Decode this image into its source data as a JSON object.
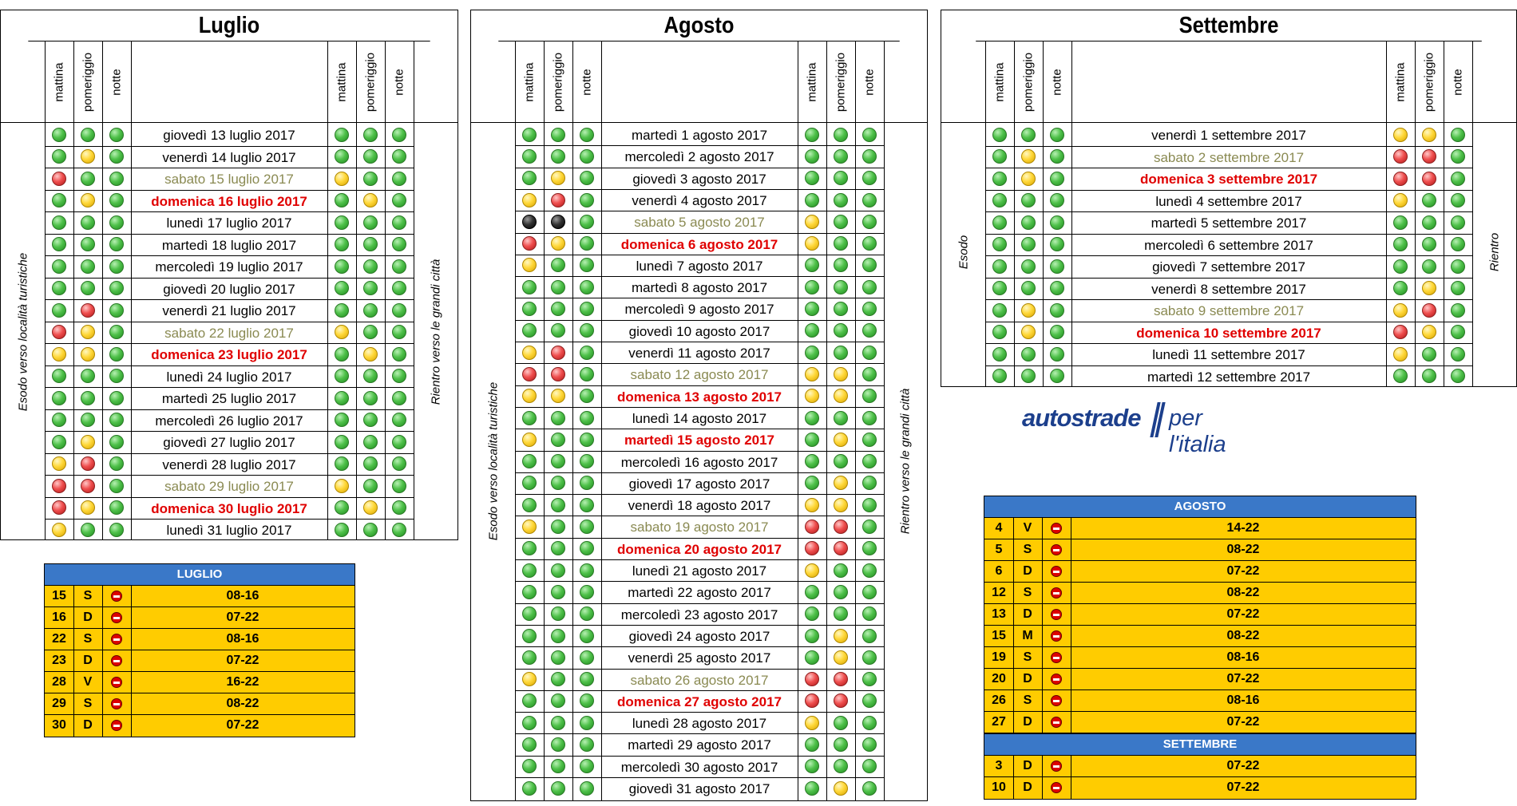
{
  "calendars": [
    {
      "id": "luglio",
      "title": "Luglio",
      "left": "Esodo verso località turistiche",
      "right": "Rientro verso le grandi città",
      "headers": [
        "mattina",
        "pomeriggio",
        "notte",
        "mattina",
        "pomeriggio",
        "notte"
      ],
      "rows": [
        {
          "d": "giovedì 13 luglio 2017",
          "t": "n",
          "o": "ggg",
          "r": "ggg"
        },
        {
          "d": "venerdì 14 luglio 2017",
          "t": "n",
          "o": "gyg",
          "r": "ggg"
        },
        {
          "d": "sabato 15 luglio 2017",
          "t": "s",
          "o": "rgg",
          "r": "ygg"
        },
        {
          "d": "domenica 16 luglio 2017",
          "t": "h",
          "o": "gyg",
          "r": "gyg"
        },
        {
          "d": "lunedì 17 luglio 2017",
          "t": "n",
          "o": "ggg",
          "r": "ggg"
        },
        {
          "d": "martedì 18 luglio 2017",
          "t": "n",
          "o": "ggg",
          "r": "ggg"
        },
        {
          "d": "mercoledì 19 luglio 2017",
          "t": "n",
          "o": "ggg",
          "r": "ggg"
        },
        {
          "d": "giovedì 20 luglio 2017",
          "t": "n",
          "o": "ggg",
          "r": "ggg"
        },
        {
          "d": "venerdì 21 luglio 2017",
          "t": "n",
          "o": "grg",
          "r": "ggg"
        },
        {
          "d": "sabato 22 luglio 2017",
          "t": "s",
          "o": "ryg",
          "r": "ygg"
        },
        {
          "d": "domenica 23 luglio 2017",
          "t": "h",
          "o": "yyg",
          "r": "gyg"
        },
        {
          "d": "lunedì 24 luglio 2017",
          "t": "n",
          "o": "ggg",
          "r": "ggg"
        },
        {
          "d": "martedì 25 luglio 2017",
          "t": "n",
          "o": "ggg",
          "r": "ggg"
        },
        {
          "d": "mercoledì 26 luglio 2017",
          "t": "n",
          "o": "ggg",
          "r": "ggg"
        },
        {
          "d": "giovedì 27 luglio 2017",
          "t": "n",
          "o": "gyg",
          "r": "ggg"
        },
        {
          "d": "venerdì 28 luglio 2017",
          "t": "n",
          "o": "yrg",
          "r": "ggg"
        },
        {
          "d": "sabato 29 luglio 2017",
          "t": "s",
          "o": "rrg",
          "r": "ygg"
        },
        {
          "d": "domenica 30 luglio 2017",
          "t": "h",
          "o": "ryg",
          "r": "gyg"
        },
        {
          "d": "lunedì 31 luglio 2017",
          "t": "n",
          "o": "ygg",
          "r": "ggg"
        }
      ]
    },
    {
      "id": "agosto",
      "title": "Agosto",
      "left": "Esodo verso località turistiche",
      "right": "Rientro verso le grandi città",
      "headers": [
        "mattina",
        "pomeriggio",
        "notte",
        "mattina",
        "pomeriggio",
        "notte"
      ],
      "rows": [
        {
          "d": "martedì 1 agosto 2017",
          "t": "n",
          "o": "ggg",
          "r": "ggg"
        },
        {
          "d": "mercoledì 2 agosto 2017",
          "t": "n",
          "o": "ggg",
          "r": "ggg"
        },
        {
          "d": "giovedì 3 agosto 2017",
          "t": "n",
          "o": "gyg",
          "r": "ggg"
        },
        {
          "d": "venerdì 4 agosto 2017",
          "t": "n",
          "o": "yrg",
          "r": "ggg"
        },
        {
          "d": "sabato 5 agosto 2017",
          "t": "s",
          "o": "kkg",
          "r": "ygg"
        },
        {
          "d": "domenica 6 agosto 2017",
          "t": "h",
          "o": "ryg",
          "r": "ygg"
        },
        {
          "d": "lunedì 7 agosto 2017",
          "t": "n",
          "o": "ygg",
          "r": "ggg"
        },
        {
          "d": "martedì 8 agosto 2017",
          "t": "n",
          "o": "ggg",
          "r": "ggg"
        },
        {
          "d": "mercoledì 9 agosto 2017",
          "t": "n",
          "o": "ggg",
          "r": "ggg"
        },
        {
          "d": "giovedì 10 agosto 2017",
          "t": "n",
          "o": "ggg",
          "r": "ggg"
        },
        {
          "d": "venerdì 11 agosto 2017",
          "t": "n",
          "o": "yrg",
          "r": "ggg"
        },
        {
          "d": "sabato 12 agosto 2017",
          "t": "s",
          "o": "rrg",
          "r": "yyg"
        },
        {
          "d": "domenica 13 agosto 2017",
          "t": "h",
          "o": "yyg",
          "r": "yyg"
        },
        {
          "d": "lunedì 14 agosto 2017",
          "t": "n",
          "o": "ggg",
          "r": "ggg"
        },
        {
          "d": "martedì 15 agosto 2017",
          "t": "h",
          "o": "ygg",
          "r": "gyg"
        },
        {
          "d": "mercoledì 16 agosto 2017",
          "t": "n",
          "o": "ggg",
          "r": "ggg"
        },
        {
          "d": "giovedì 17 agosto 2017",
          "t": "n",
          "o": "ggg",
          "r": "gyg"
        },
        {
          "d": "venerdì 18 agosto 2017",
          "t": "n",
          "o": "ggg",
          "r": "yyg"
        },
        {
          "d": "sabato 19 agosto 2017",
          "t": "s",
          "o": "ygg",
          "r": "rrg"
        },
        {
          "d": "domenica 20 agosto 2017",
          "t": "h",
          "o": "ggg",
          "r": "rrg"
        },
        {
          "d": "lunedì 21 agosto 2017",
          "t": "n",
          "o": "ggg",
          "r": "ygg"
        },
        {
          "d": "martedì 22 agosto 2017",
          "t": "n",
          "o": "ggg",
          "r": "ggg"
        },
        {
          "d": "mercoledì 23 agosto 2017",
          "t": "n",
          "o": "ggg",
          "r": "ggg"
        },
        {
          "d": "giovedì 24 agosto 2017",
          "t": "n",
          "o": "ggg",
          "r": "gyg"
        },
        {
          "d": "venerdì 25 agosto 2017",
          "t": "n",
          "o": "ggg",
          "r": "gyg"
        },
        {
          "d": "sabato 26 agosto 2017",
          "t": "s",
          "o": "ygg",
          "r": "rrg"
        },
        {
          "d": "domenica 27 agosto 2017",
          "t": "h",
          "o": "ggg",
          "r": "rrg"
        },
        {
          "d": "lunedì 28 agosto 2017",
          "t": "n",
          "o": "ggg",
          "r": "ygg"
        },
        {
          "d": "martedì 29 agosto 2017",
          "t": "n",
          "o": "ggg",
          "r": "ggg"
        },
        {
          "d": "mercoledì 30 agosto 2017",
          "t": "n",
          "o": "ggg",
          "r": "ggg"
        },
        {
          "d": "giovedì 31 agosto 2017",
          "t": "n",
          "o": "ggg",
          "r": "gyg"
        }
      ]
    },
    {
      "id": "settembre",
      "title": "Settembre",
      "left": "Esodo",
      "right": "Rientro",
      "headers": [
        "mattina",
        "pomeriggio",
        "notte",
        "mattina",
        "pomeriggio",
        "notte"
      ],
      "rows": [
        {
          "d": "venerdì 1 settembre 2017",
          "t": "n",
          "o": "ggg",
          "r": "yyg"
        },
        {
          "d": "sabato 2 settembre 2017",
          "t": "s",
          "o": "gyg",
          "r": "rrg"
        },
        {
          "d": "domenica 3 settembre 2017",
          "t": "h",
          "o": "gyg",
          "r": "rrg"
        },
        {
          "d": "lunedì 4 settembre 2017",
          "t": "n",
          "o": "ggg",
          "r": "ygg"
        },
        {
          "d": "martedì 5 settembre 2017",
          "t": "n",
          "o": "ggg",
          "r": "ggg"
        },
        {
          "d": "mercoledì 6 settembre 2017",
          "t": "n",
          "o": "ggg",
          "r": "ggg"
        },
        {
          "d": "giovedì 7 settembre 2017",
          "t": "n",
          "o": "ggg",
          "r": "ggg"
        },
        {
          "d": "venerdì 8 settembre 2017",
          "t": "n",
          "o": "ggg",
          "r": "gyg"
        },
        {
          "d": "sabato 9 settembre 2017",
          "t": "s",
          "o": "gyg",
          "r": "yrg"
        },
        {
          "d": "domenica 10 settembre 2017",
          "t": "h",
          "o": "gyg",
          "r": "ryg"
        },
        {
          "d": "lunedì 11 settembre 2017",
          "t": "n",
          "o": "ggg",
          "r": "ygg"
        },
        {
          "d": "martedì 12 settembre 2017",
          "t": "n",
          "o": "ggg",
          "r": "ggg"
        }
      ]
    }
  ],
  "bans": [
    {
      "id": "ban-luglio",
      "sections": [
        {
          "title": "LUGLIO",
          "rows": [
            [
              "15",
              "S",
              "08-16"
            ],
            [
              "16",
              "D",
              "07-22"
            ],
            [
              "22",
              "S",
              "08-16"
            ],
            [
              "23",
              "D",
              "07-22"
            ],
            [
              "28",
              "V",
              "16-22"
            ],
            [
              "29",
              "S",
              "08-22"
            ],
            [
              "30",
              "D",
              "07-22"
            ]
          ]
        }
      ]
    },
    {
      "id": "ban-agosto-settembre",
      "sections": [
        {
          "title": "AGOSTO",
          "rows": [
            [
              "4",
              "V",
              "14-22"
            ],
            [
              "5",
              "S",
              "08-22"
            ],
            [
              "6",
              "D",
              "07-22"
            ],
            [
              "12",
              "S",
              "08-22"
            ],
            [
              "13",
              "D",
              "07-22"
            ],
            [
              "15",
              "M",
              "08-22"
            ],
            [
              "19",
              "S",
              "08-16"
            ],
            [
              "20",
              "D",
              "07-22"
            ],
            [
              "26",
              "S",
              "08-16"
            ],
            [
              "27",
              "D",
              "07-22"
            ]
          ]
        },
        {
          "title": "SETTEMBRE",
          "rows": [
            [
              "3",
              "D",
              "07-22"
            ],
            [
              "10",
              "D",
              "07-22"
            ]
          ]
        }
      ]
    }
  ],
  "logo": {
    "brand": "autostrade",
    "tagline": "per l'italia"
  },
  "icons": {
    "ban": "no-entry-icon",
    "level": "traffic-level-dot-icon"
  },
  "colors": {
    "green": "#3fb43a",
    "yellow": "#ffd83a",
    "red": "#ef4f4f",
    "black": "#222222",
    "saturday": "#8a8a52",
    "holiday": "#e00000",
    "ban_bg": "#ffcc00",
    "ban_header": "#3a78c8"
  }
}
